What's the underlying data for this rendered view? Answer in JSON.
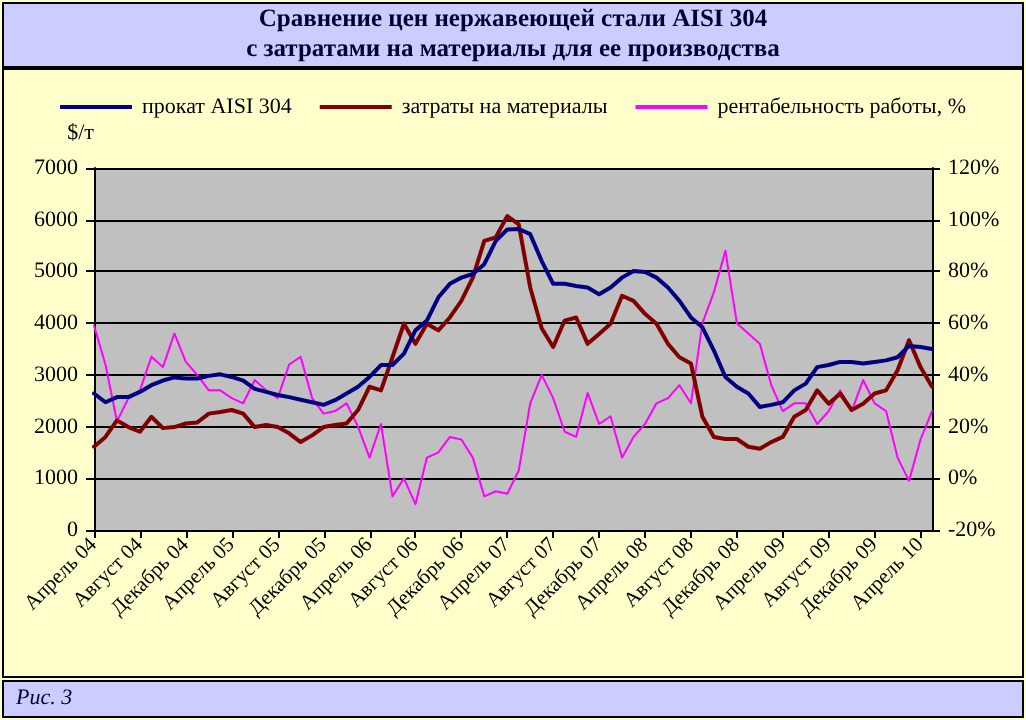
{
  "chart_data": {
    "type": "line",
    "title": "Сравнение цен нержавеющей стали AISI 304\nс затратами на материалы для ее производства",
    "ylabel": "$/т",
    "annotations": [
      "Рис. 3"
    ],
    "categories": [
      "Апрель 04",
      null,
      null,
      null,
      "Август 04",
      null,
      null,
      null,
      "Декабрь 04",
      null,
      null,
      null,
      "Апрель 05",
      null,
      null,
      null,
      "Август 05",
      null,
      null,
      null,
      "Декабрь 05",
      null,
      null,
      null,
      "Апрель 06",
      null,
      null,
      null,
      "Август 06",
      null,
      null,
      null,
      "Декабрь 06",
      null,
      null,
      null,
      "Апрель 07",
      null,
      null,
      null,
      "Август 07",
      null,
      null,
      null,
      "Декабрь 07",
      null,
      null,
      null,
      "Апрель 08",
      null,
      null,
      null,
      "Август 08",
      null,
      null,
      null,
      "Декабрь 08",
      null,
      null,
      null,
      "Апрель 09",
      null,
      null,
      null,
      "Август 09",
      null,
      null,
      null,
      "Декабрь 09",
      null,
      null,
      null,
      "Апрель 10",
      null
    ],
    "series": [
      {
        "name": "прокат AISI 304",
        "color": "#000080",
        "values": [
          2640,
          2470,
          2570,
          2570,
          2670,
          2800,
          2890,
          2950,
          2930,
          2930,
          2980,
          3010,
          2960,
          2890,
          2730,
          2670,
          2610,
          2570,
          2520,
          2470,
          2420,
          2510,
          2640,
          2770,
          2960,
          3190,
          3190,
          3410,
          3860,
          4050,
          4500,
          4760,
          4880,
          4950,
          5140,
          5590,
          5810,
          5820,
          5720,
          5200,
          4760,
          4760,
          4720,
          4690,
          4560,
          4690,
          4880,
          5010,
          4990,
          4880,
          4690,
          4430,
          4110,
          3920,
          3470,
          2960,
          2770,
          2640,
          2380,
          2420,
          2470,
          2700,
          2830,
          3150,
          3190,
          3250,
          3250,
          3220,
          3250,
          3280,
          3340,
          3560,
          3540,
          3500
        ]
      },
      {
        "name": "затраты на материалы",
        "color": "#800000",
        "values": [
          1610,
          1800,
          2120,
          1990,
          1900,
          2190,
          1970,
          1990,
          2060,
          2080,
          2250,
          2280,
          2320,
          2250,
          1990,
          2030,
          1990,
          1870,
          1700,
          1830,
          1990,
          2030,
          2060,
          2320,
          2770,
          2700,
          3340,
          3990,
          3600,
          3990,
          3860,
          4110,
          4430,
          4880,
          5590,
          5660,
          6070,
          5910,
          4690,
          3900,
          3540,
          4050,
          4110,
          3600,
          3790,
          3990,
          4530,
          4430,
          4180,
          3990,
          3600,
          3340,
          3220,
          2190,
          1800,
          1760,
          1760,
          1610,
          1570,
          1700,
          1800,
          2190,
          2320,
          2700,
          2440,
          2640,
          2320,
          2440,
          2640,
          2700,
          3090,
          3670,
          3150,
          2770
        ]
      },
      {
        "name": "рентабельность работы, %",
        "color": "#ff00ff",
        "axis": "y2",
        "values": [
          59,
          44,
          22,
          31,
          34,
          47,
          43,
          56,
          45,
          40,
          34,
          34,
          31,
          29,
          38,
          34,
          31,
          44,
          47,
          31,
          25,
          26,
          29,
          20,
          8,
          21,
          -7,
          0,
          -10,
          8,
          10,
          16,
          15,
          8,
          -7,
          -5,
          -6,
          3,
          29,
          40,
          31,
          18,
          16,
          33,
          21,
          24,
          8,
          16,
          21,
          29,
          31,
          36,
          29,
          60,
          72,
          88,
          60,
          56,
          52,
          36,
          26,
          29,
          29,
          21,
          26,
          34,
          26,
          38,
          29,
          26,
          8,
          -1,
          15,
          26
        ]
      }
    ],
    "ylim": [
      0,
      7000
    ],
    "yticks": [
      0,
      1000,
      2000,
      3000,
      4000,
      5000,
      6000,
      7000
    ],
    "y2lim": [
      -20,
      120
    ],
    "y2ticks": [
      {
        "value": -20,
        "label": "-20%"
      },
      {
        "value": 0,
        "label": "0%"
      },
      {
        "value": 20,
        "label": "20%"
      },
      {
        "value": 40,
        "label": "40%"
      },
      {
        "value": 60,
        "label": "60%"
      },
      {
        "value": 80,
        "label": "80%"
      },
      {
        "value": 100,
        "label": "100%"
      },
      {
        "value": 120,
        "label": "120%"
      }
    ],
    "grid": "y",
    "legend": "top"
  }
}
